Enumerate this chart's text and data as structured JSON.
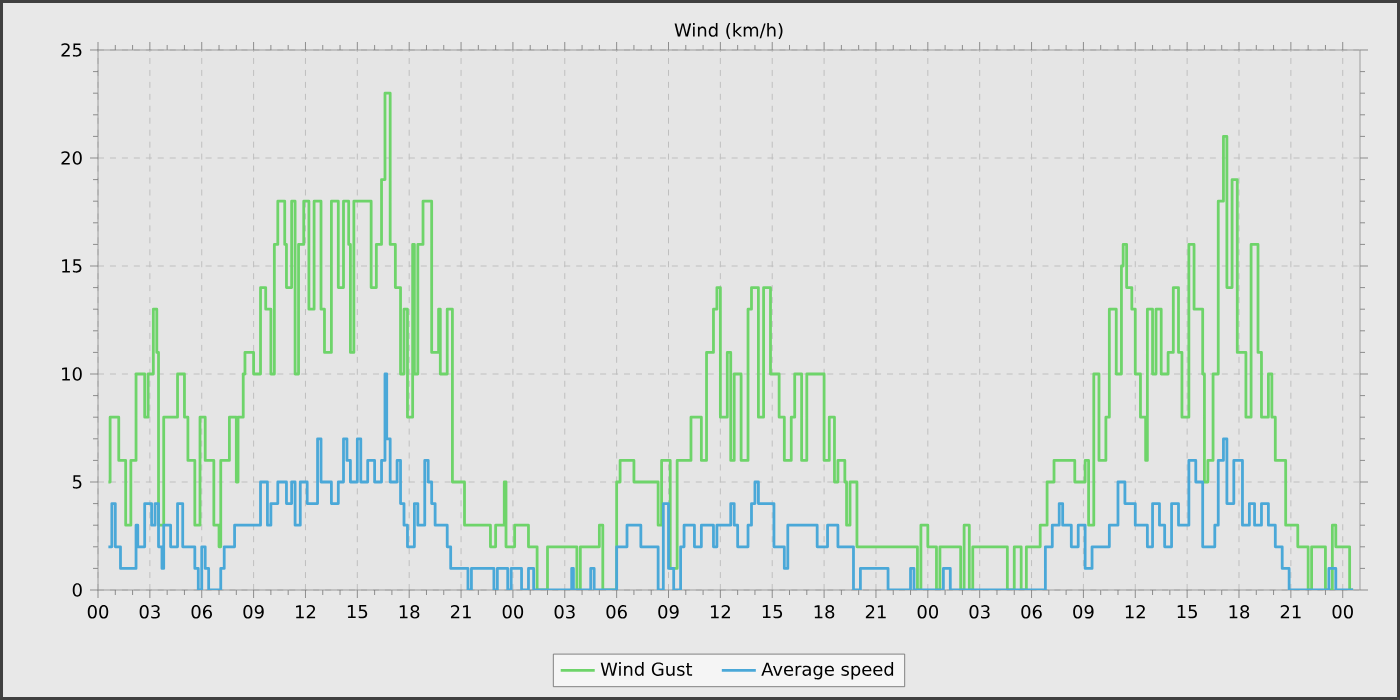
{
  "chart_data": {
    "type": "step",
    "title": "Wind (km/h)",
    "xlim": [
      0,
      73
    ],
    "ylim": [
      0,
      25
    ],
    "xticks": [
      {
        "value": 0,
        "label": "00"
      },
      {
        "value": 3,
        "label": "03"
      },
      {
        "value": 6,
        "label": "06"
      },
      {
        "value": 9,
        "label": "09"
      },
      {
        "value": 12,
        "label": "12"
      },
      {
        "value": 15,
        "label": "15"
      },
      {
        "value": 18,
        "label": "18"
      },
      {
        "value": 21,
        "label": "21"
      },
      {
        "value": 24,
        "label": "00"
      },
      {
        "value": 27,
        "label": "03"
      },
      {
        "value": 30,
        "label": "06"
      },
      {
        "value": 33,
        "label": "09"
      },
      {
        "value": 36,
        "label": "12"
      },
      {
        "value": 39,
        "label": "15"
      },
      {
        "value": 42,
        "label": "18"
      },
      {
        "value": 45,
        "label": "21"
      },
      {
        "value": 48,
        "label": "00"
      },
      {
        "value": 51,
        "label": "03"
      },
      {
        "value": 54,
        "label": "06"
      },
      {
        "value": 57,
        "label": "09"
      },
      {
        "value": 60,
        "label": "12"
      },
      {
        "value": 63,
        "label": "15"
      },
      {
        "value": 66,
        "label": "18"
      },
      {
        "value": 69,
        "label": "21"
      },
      {
        "value": 72,
        "label": "00"
      }
    ],
    "yticks": [
      0,
      5,
      10,
      15,
      20,
      25
    ],
    "grid": true,
    "legend": "bottom",
    "marker": "none",
    "line_style": "solid",
    "series": [
      {
        "name": "Wind Gust",
        "color": "#6ed46a",
        "x": [
          0.6,
          0.7,
          1.2,
          1.6,
          1.9,
          2.2,
          2.7,
          2.9,
          3.2,
          3.4,
          3.5,
          3.8,
          4.6,
          5.0,
          5.2,
          5.6,
          5.9,
          6.2,
          6.7,
          7.0,
          7.1,
          7.6,
          8.0,
          8.1,
          8.4,
          8.5,
          9.0,
          9.4,
          9.7,
          10.0,
          10.2,
          10.4,
          10.8,
          10.9,
          11.2,
          11.4,
          11.6,
          11.9,
          12.2,
          12.5,
          12.9,
          13.1,
          13.5,
          13.9,
          14.2,
          14.5,
          14.6,
          14.8,
          15.8,
          16.1,
          16.4,
          16.6,
          16.9,
          17.2,
          17.5,
          17.7,
          17.9,
          18.2,
          18.3,
          18.5,
          18.8,
          19.3,
          19.7,
          19.8,
          20.2,
          20.5,
          21.2,
          22.7,
          23.0,
          23.5,
          23.6,
          24.1,
          24.9,
          25.4,
          26.0,
          27.7,
          27.9,
          29.0,
          29.2,
          30.0,
          30.2,
          31.0,
          32.4,
          32.6,
          33.1,
          33.5,
          34.3,
          34.9,
          35.2,
          35.6,
          35.8,
          36.0,
          36.4,
          36.6,
          36.8,
          37.2,
          37.6,
          37.8,
          38.2,
          38.5,
          38.9,
          39.4,
          39.7,
          40.1,
          40.3,
          40.7,
          41.0,
          42.0,
          42.3,
          42.6,
          42.8,
          43.2,
          43.3,
          43.5,
          43.9,
          47.4,
          47.6,
          48.0,
          48.5,
          48.7,
          49.9,
          50.1,
          50.4,
          50.6,
          52.6,
          53.0,
          53.4,
          53.7,
          54.5,
          54.9,
          55.3,
          56.5,
          57.1,
          57.3,
          57.6,
          57.9,
          58.3,
          58.5,
          58.9,
          59.2,
          59.3,
          59.5,
          59.8,
          60.0,
          60.3,
          60.6,
          60.7,
          61.0,
          61.2,
          61.5,
          61.9,
          62.2,
          62.5,
          62.7,
          63.1,
          63.4,
          63.9,
          64.0,
          64.2,
          64.5,
          64.8,
          65.1,
          65.3,
          65.6,
          65.9,
          66.4,
          66.7,
          67.1,
          67.3,
          67.7,
          67.9,
          68.1,
          68.7,
          69.4,
          70.0,
          70.2,
          71.0,
          71.4,
          71.6,
          72.4,
          72.6
        ],
        "values": [
          5,
          8,
          6,
          3,
          6,
          10,
          8,
          10,
          13,
          11,
          3,
          8,
          10,
          8,
          6,
          3,
          8,
          6,
          3,
          2,
          6,
          8,
          5,
          8,
          10,
          11,
          10,
          14,
          13,
          10,
          16,
          18,
          16,
          14,
          18,
          10,
          16,
          18,
          13,
          18,
          13,
          11,
          18,
          14,
          18,
          16,
          11,
          18,
          14,
          16,
          19,
          23,
          16,
          14,
          10,
          13,
          8,
          16,
          10,
          16,
          18,
          11,
          13,
          10,
          13,
          5,
          3,
          2,
          3,
          5,
          2,
          3,
          2,
          0,
          2,
          0,
          2,
          3,
          0,
          5,
          6,
          5,
          3,
          6,
          1,
          6,
          8,
          6,
          11,
          13,
          14,
          8,
          11,
          6,
          10,
          6,
          13,
          14,
          8,
          14,
          10,
          8,
          6,
          8,
          10,
          6,
          10,
          6,
          8,
          5,
          6,
          5,
          3,
          5,
          2,
          0,
          3,
          2,
          0,
          2,
          0,
          3,
          0,
          2,
          0,
          2,
          0,
          2,
          3,
          5,
          6,
          5,
          6,
          3,
          10,
          6,
          8,
          13,
          10,
          15,
          16,
          14,
          13,
          10,
          8,
          6,
          13,
          10,
          13,
          10,
          11,
          14,
          11,
          8,
          16,
          13,
          10,
          5,
          6,
          10,
          18,
          21,
          14,
          19,
          11,
          8,
          16,
          11,
          8,
          10,
          8,
          6,
          3,
          2,
          0,
          2,
          0,
          3,
          2,
          0,
          0
        ]
      },
      {
        "name": "Average speed",
        "color": "#4aa8d8",
        "x": [
          0.6,
          0.8,
          1.0,
          1.3,
          2.2,
          2.3,
          2.7,
          3.1,
          3.3,
          3.5,
          3.7,
          3.8,
          4.2,
          4.6,
          4.9,
          5.6,
          5.8,
          6.0,
          6.2,
          6.4,
          7.1,
          7.3,
          7.9,
          9.4,
          9.8,
          10.0,
          10.4,
          10.9,
          11.2,
          11.4,
          11.7,
          12.1,
          12.7,
          12.9,
          13.5,
          13.9,
          14.2,
          14.4,
          14.6,
          15.0,
          15.2,
          15.6,
          16.0,
          16.4,
          16.6,
          16.7,
          16.9,
          17.3,
          17.5,
          17.7,
          17.9,
          18.3,
          18.5,
          18.9,
          19.1,
          19.3,
          19.5,
          20.2,
          20.4,
          21.4,
          21.6,
          22.9,
          23.1,
          23.7,
          23.9,
          24.5,
          24.9,
          25.2,
          27.4,
          27.5,
          28.5,
          28.7,
          30.0,
          30.6,
          31.4,
          32.4,
          32.7,
          33.0,
          33.3,
          33.7,
          33.9,
          34.5,
          34.9,
          35.6,
          35.8,
          36.6,
          36.8,
          37.0,
          37.6,
          37.8,
          38.0,
          38.2,
          39.1,
          39.7,
          39.9,
          41.6,
          42.2,
          42.8,
          43.7,
          44.1,
          45.7,
          47.0,
          47.2,
          48.9,
          49.3,
          54.8,
          55.2,
          55.6,
          55.8,
          56.3,
          56.7,
          57.1,
          57.5,
          58.5,
          59.0,
          59.4,
          60.0,
          60.7,
          61.0,
          61.4,
          61.7,
          62.1,
          62.5,
          63.1,
          63.5,
          63.9,
          64.6,
          64.8,
          65.1,
          65.3,
          65.7,
          66.2,
          66.6,
          66.9,
          67.3,
          67.7,
          68.1,
          68.5,
          68.9,
          71.2,
          71.6,
          72.6
        ],
        "values": [
          2,
          4,
          2,
          1,
          3,
          2,
          4,
          3,
          4,
          2,
          1,
          3,
          2,
          4,
          2,
          1,
          0,
          2,
          1,
          0,
          1,
          2,
          3,
          5,
          3,
          4,
          5,
          4,
          5,
          3,
          5,
          4,
          7,
          5,
          4,
          5,
          7,
          6,
          5,
          7,
          5,
          6,
          5,
          6,
          10,
          7,
          5,
          6,
          4,
          3,
          2,
          4,
          3,
          6,
          5,
          4,
          3,
          2,
          1,
          0,
          1,
          0,
          1,
          0,
          1,
          0,
          1,
          0,
          1,
          0,
          1,
          0,
          2,
          3,
          2,
          0,
          4,
          1,
          0,
          2,
          3,
          2,
          3,
          2,
          3,
          4,
          3,
          2,
          3,
          4,
          5,
          4,
          2,
          1,
          3,
          2,
          3,
          2,
          0,
          1,
          0,
          1,
          0,
          1,
          0,
          2,
          3,
          4,
          3,
          2,
          3,
          1,
          2,
          3,
          5,
          4,
          3,
          2,
          4,
          3,
          2,
          4,
          3,
          6,
          5,
          2,
          3,
          6,
          7,
          4,
          6,
          3,
          4,
          3,
          4,
          3,
          2,
          1,
          0,
          1,
          0,
          0
        ]
      }
    ]
  }
}
